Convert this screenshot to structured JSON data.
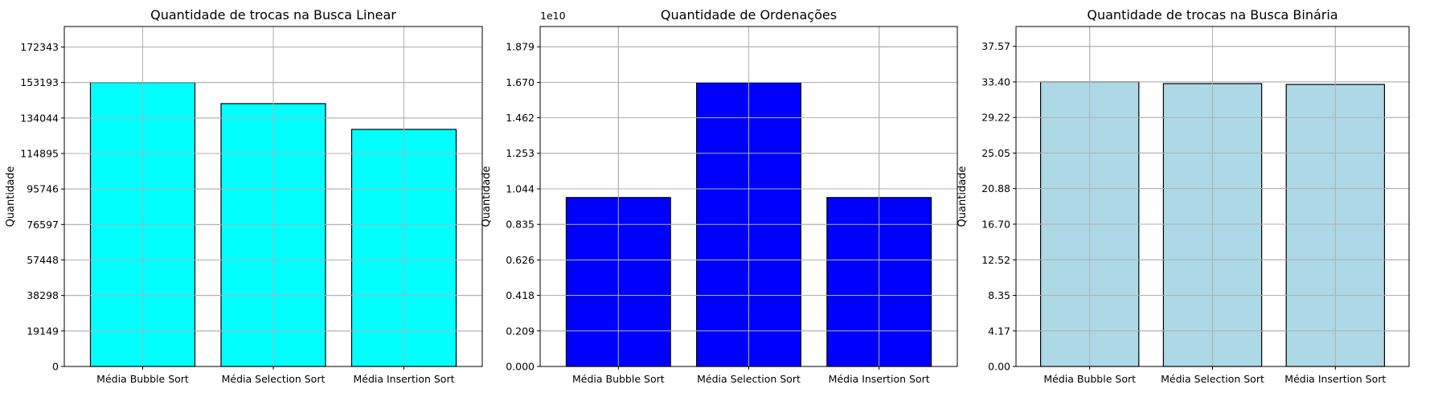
{
  "chart_data": [
    {
      "type": "bar",
      "title": "Quantidade de trocas na Busca Linear",
      "xlabel": "",
      "ylabel": "Quantidade",
      "categories": [
        "Média Bubble Sort",
        "Média Selection Sort",
        "Média Insertion Sort"
      ],
      "values": [
        153193,
        141800,
        127900
      ],
      "ylim": [
        0,
        183400
      ],
      "yticks": [
        0,
        19149,
        38298,
        57448,
        76597,
        95746,
        114895,
        134044,
        153193,
        172343
      ],
      "ytick_labels": [
        "0",
        "19149",
        "38298",
        "57448",
        "76597",
        "95746",
        "114895",
        "134044",
        "153193",
        "172343"
      ],
      "offset_label": "",
      "bar_color": "#00ffff",
      "grid": true
    },
    {
      "type": "bar",
      "title": "Quantidade de Ordenações",
      "xlabel": "",
      "ylabel": "Quantidade",
      "categories": [
        "Média Bubble Sort",
        "Média Selection Sort",
        "Média Insertion Sort"
      ],
      "values": [
        9930000000,
        16680000000,
        9930000000
      ],
      "ylim": [
        0,
        19980000000
      ],
      "yticks": [
        0,
        2090000000,
        4180000000,
        6260000000,
        8350000000,
        10440000000,
        12530000000,
        14620000000,
        16700000000,
        18790000000
      ],
      "ytick_labels": [
        "0.000",
        "0.209",
        "0.418",
        "0.626",
        "0.835",
        "1.044",
        "1.253",
        "1.462",
        "1.670",
        "1.879"
      ],
      "offset_label": "1e10",
      "bar_color": "#0000ff",
      "grid": true
    },
    {
      "type": "bar",
      "title": "Quantidade de trocas na Busca Binária",
      "xlabel": "",
      "ylabel": "Quantidade",
      "categories": [
        "Média Bubble Sort",
        "Média Selection Sort",
        "Média Insertion Sort"
      ],
      "values": [
        33.4,
        33.2,
        33.1
      ],
      "ylim": [
        0,
        39.9
      ],
      "yticks": [
        0,
        4.17,
        8.35,
        12.52,
        16.7,
        20.88,
        25.05,
        29.22,
        33.4,
        37.57
      ],
      "ytick_labels": [
        "0.00",
        "4.17",
        "8.35",
        "12.52",
        "16.70",
        "20.88",
        "25.05",
        "29.22",
        "33.40",
        "37.57"
      ],
      "offset_label": "",
      "bar_color": "#add8e6",
      "grid": true
    }
  ]
}
